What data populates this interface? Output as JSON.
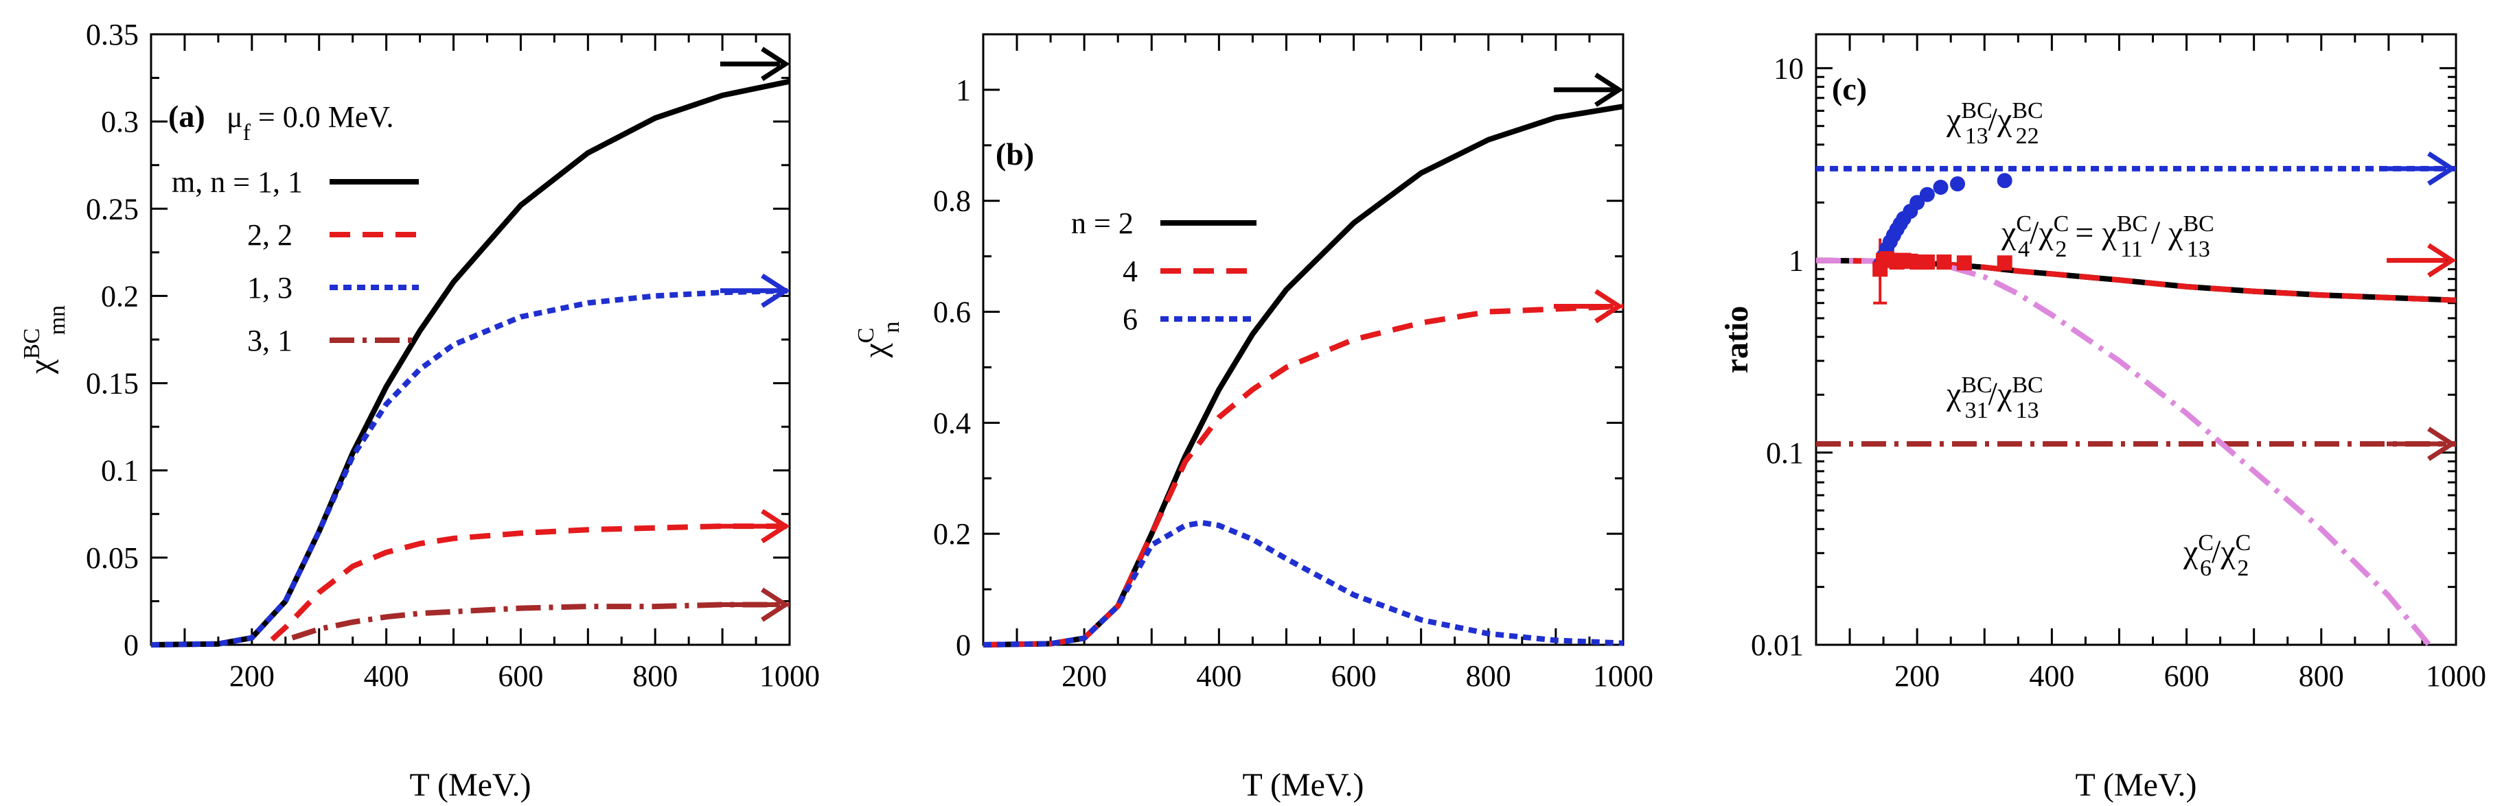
{
  "chart_data": [
    {
      "type": "line",
      "panel_label": "(a)",
      "annotation": "μf = 0.0 MeV.",
      "xlabel": "T (MeV.)",
      "ylabel": "χBCmn",
      "xlim": [
        50,
        1000
      ],
      "ylim": [
        0,
        0.35
      ],
      "x_ticks": [
        200,
        400,
        600,
        800,
        1000
      ],
      "y_ticks": [
        "0",
        "0.05",
        "0.1",
        "0.15",
        "0.2",
        "0.25",
        "0.3",
        "0.35"
      ],
      "y_tick_values": [
        0,
        0.05,
        0.1,
        0.15,
        0.2,
        0.25,
        0.3,
        0.35
      ],
      "legend_position": "top-left",
      "legend": [
        "m, n = 1, 1",
        "2, 2",
        "1, 3",
        "3, 1"
      ],
      "series": [
        {
          "name": "m, n = 1, 1",
          "color": "#000000",
          "dash": "solid",
          "x": [
            50,
            150,
            200,
            250,
            300,
            350,
            400,
            450,
            500,
            600,
            700,
            800,
            900,
            1000
          ],
          "y": [
            0,
            0.0005,
            0.004,
            0.025,
            0.065,
            0.11,
            0.148,
            0.18,
            0.208,
            0.252,
            0.282,
            0.302,
            0.315,
            0.323
          ]
        },
        {
          "name": "2, 2",
          "color": "#e41a1c",
          "dash": "dashed",
          "x": [
            230,
            250,
            300,
            350,
            400,
            450,
            500,
            600,
            700,
            800,
            900,
            1000
          ],
          "y": [
            0.003,
            0.01,
            0.03,
            0.045,
            0.053,
            0.058,
            0.061,
            0.064,
            0.066,
            0.067,
            0.068,
            0.068
          ]
        },
        {
          "name": "1, 3",
          "color": "#1f2fd0",
          "dash": "dotted",
          "x": [
            50,
            150,
            200,
            250,
            300,
            350,
            400,
            450,
            500,
            600,
            700,
            800,
            900,
            1000
          ],
          "y": [
            0,
            0.0005,
            0.004,
            0.025,
            0.065,
            0.108,
            0.138,
            0.158,
            0.172,
            0.188,
            0.196,
            0.2,
            0.202,
            0.203
          ]
        },
        {
          "name": "3, 1",
          "color": "#a52a2a",
          "dash": "dashdot",
          "x": [
            260,
            300,
            350,
            400,
            450,
            500,
            600,
            700,
            800,
            900,
            1000
          ],
          "y": [
            0.004,
            0.009,
            0.013,
            0.016,
            0.018,
            0.019,
            0.021,
            0.022,
            0.022,
            0.023,
            0.023
          ]
        }
      ],
      "arrows": [
        {
          "color": "#000000",
          "y": 0.333
        },
        {
          "color": "#1f2fd0",
          "y": 0.203
        },
        {
          "color": "#e41a1c",
          "y": 0.068
        },
        {
          "color": "#a52a2a",
          "y": 0.023
        }
      ]
    },
    {
      "type": "line",
      "panel_label": "(b)",
      "xlabel": "T (MeV.)",
      "ylabel": "χCn",
      "xlim": [
        50,
        1000
      ],
      "ylim": [
        0,
        1.1
      ],
      "x_ticks": [
        200,
        400,
        600,
        800,
        1000
      ],
      "y_ticks": [
        "0",
        "0.2",
        "0.4",
        "0.6",
        "0.8",
        "1"
      ],
      "y_tick_values": [
        0,
        0.2,
        0.4,
        0.6,
        0.8,
        1
      ],
      "legend_position": "upper-left",
      "legend": [
        "n = 2",
        "4",
        "6"
      ],
      "series": [
        {
          "name": "n = 2",
          "color": "#000000",
          "dash": "solid",
          "x": [
            50,
            150,
            200,
            250,
            300,
            350,
            400,
            450,
            500,
            600,
            700,
            800,
            900,
            1000
          ],
          "y": [
            0,
            0.002,
            0.012,
            0.07,
            0.2,
            0.34,
            0.46,
            0.56,
            0.64,
            0.76,
            0.85,
            0.91,
            0.95,
            0.97
          ]
        },
        {
          "name": "4",
          "color": "#e41a1c",
          "dash": "dashed",
          "x": [
            50,
            150,
            200,
            250,
            300,
            350,
            400,
            450,
            500,
            600,
            700,
            800,
            900,
            1000
          ],
          "y": [
            0,
            0.002,
            0.012,
            0.07,
            0.2,
            0.33,
            0.41,
            0.46,
            0.5,
            0.55,
            0.58,
            0.6,
            0.605,
            0.61
          ]
        },
        {
          "name": "6",
          "color": "#1f2fd0",
          "dash": "dotted",
          "x": [
            50,
            150,
            200,
            250,
            300,
            350,
            375,
            400,
            450,
            500,
            600,
            700,
            800,
            900,
            1000
          ],
          "y": [
            0,
            0.002,
            0.012,
            0.07,
            0.18,
            0.215,
            0.22,
            0.215,
            0.19,
            0.155,
            0.09,
            0.045,
            0.02,
            0.008,
            0.003
          ]
        }
      ],
      "arrows": [
        {
          "color": "#000000",
          "y": 1.0
        },
        {
          "color": "#e41a1c",
          "y": 0.61
        }
      ]
    },
    {
      "type": "line",
      "panel_label": "(c)",
      "xlabel": "T (MeV.)",
      "ylabel": "ratio",
      "yscale": "log",
      "xlim": [
        50,
        1000
      ],
      "ylim": [
        0.01,
        15
      ],
      "x_ticks": [
        200,
        400,
        600,
        800,
        1000
      ],
      "y_ticks": [
        "0.01",
        "0.1",
        "1",
        "10"
      ],
      "y_tick_values": [
        0.01,
        0.1,
        1,
        10
      ],
      "annotations": {
        "r1": {
          "main": "χ",
          "sup1": "BC",
          "sub1": "13",
          "slash": "/χ",
          "sup2": "BC",
          "sub2": "22"
        },
        "r2": {
          "p1": "χ",
          "s1": "C",
          "b1": "4",
          "p2": "/χ",
          "s2": "C",
          "b2": "2",
          "p3": " = χ",
          "s3": "BC",
          "b3": "11",
          "p4": " / χ",
          "s4": "BC",
          "b4": "13"
        },
        "r3": {
          "main": "χ",
          "sup1": "BC",
          "sub1": "31",
          "slash": "/χ",
          "sup2": "BC",
          "sub2": "13"
        },
        "r4": {
          "main": "χ",
          "sup1": "C",
          "sub1": "6",
          "slash": "/χ",
          "sup2": "C",
          "sub2": "2"
        }
      },
      "series": [
        {
          "name": "χBC13/χBC22",
          "color": "#1f2fd0",
          "dash": "dotted",
          "x": [
            50,
            1000
          ],
          "y": [
            3.0,
            3.0
          ]
        },
        {
          "name": "χC4/χC2 = χBC11/χBC13",
          "color": "#000000",
          "dash": "solid",
          "x": [
            50,
            150,
            200,
            250,
            300,
            350,
            400,
            500,
            600,
            700,
            800,
            900,
            1000
          ],
          "y": [
            1.0,
            0.99,
            0.97,
            0.95,
            0.92,
            0.88,
            0.85,
            0.79,
            0.73,
            0.69,
            0.66,
            0.64,
            0.62
          ]
        },
        {
          "name": "χC4/χC2 overlay",
          "color": "#e41a1c",
          "dash": "dashed",
          "x": [
            50,
            150,
            200,
            250,
            300,
            350,
            400,
            500,
            600,
            700,
            800,
            900,
            1000
          ],
          "y": [
            1.0,
            0.99,
            0.97,
            0.95,
            0.92,
            0.88,
            0.85,
            0.79,
            0.73,
            0.69,
            0.66,
            0.64,
            0.62
          ]
        },
        {
          "name": "χBC31/χBC13",
          "color": "#a52a2a",
          "dash": "dashdot",
          "x": [
            50,
            1000
          ],
          "y": [
            0.111,
            0.111
          ]
        },
        {
          "name": "χC6/χC2",
          "color": "#dd88dd",
          "dash": "dashdot",
          "x": [
            50,
            150,
            200,
            250,
            300,
            350,
            400,
            500,
            600,
            700,
            800,
            900,
            960
          ],
          "y": [
            1.0,
            0.99,
            0.97,
            0.92,
            0.82,
            0.67,
            0.52,
            0.3,
            0.16,
            0.08,
            0.04,
            0.018,
            0.01
          ]
        }
      ],
      "markers": [
        {
          "name": "blue circles",
          "color": "#1f2fd0",
          "shape": "circle",
          "x": [
            145,
            150,
            155,
            160,
            165,
            170,
            175,
            180,
            190,
            200,
            215,
            235,
            260,
            330
          ],
          "y": [
            0.95,
            1.05,
            1.15,
            1.25,
            1.35,
            1.45,
            1.55,
            1.65,
            1.8,
            2.0,
            2.2,
            2.4,
            2.5,
            2.6
          ]
        },
        {
          "name": "red squares",
          "color": "#e41a1c",
          "shape": "square",
          "x": [
            145,
            150,
            155,
            160,
            165,
            170,
            175,
            180,
            190,
            200,
            215,
            240,
            270,
            330
          ],
          "y": [
            0.9,
            1.0,
            1.02,
            1.0,
            1.0,
            0.98,
            0.99,
            1.0,
            0.99,
            0.98,
            0.98,
            0.98,
            0.97,
            0.97
          ]
        }
      ],
      "errorbars": [
        {
          "x": 145,
          "ylow": 0.6,
          "yhigh": 1.3,
          "color": "#e41a1c"
        }
      ],
      "arrows": [
        {
          "color": "#1f2fd0",
          "y": 3.0
        },
        {
          "color": "#e41a1c",
          "y": 1.0
        },
        {
          "color": "#a52a2a",
          "y": 0.111
        }
      ]
    }
  ]
}
